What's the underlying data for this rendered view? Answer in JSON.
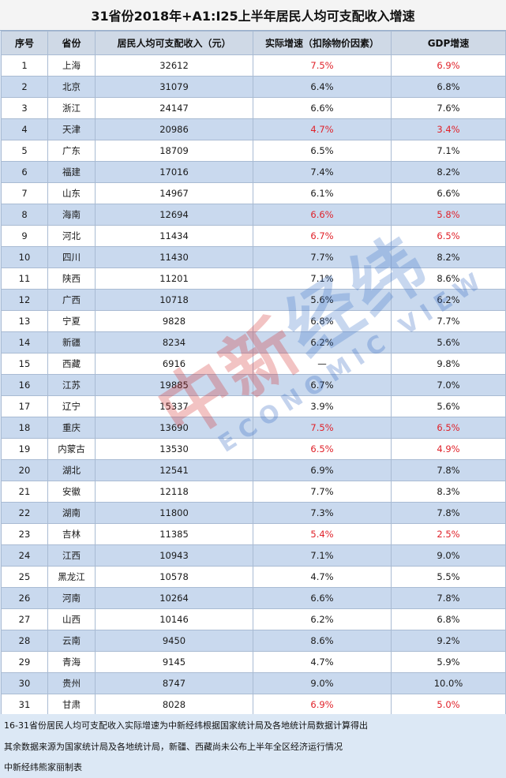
{
  "title": "31省份2018年+A1:I25上半年居民人均可支配收入增速",
  "headers": [
    "序号",
    "省份",
    "居民人均可支配收入（元）",
    "实际增速（扣除物价因素）",
    "GDP增速"
  ],
  "rows": [
    {
      "no": "1",
      "province": "上海",
      "income": "32612",
      "real_growth": "7.5%",
      "gdp_growth": "6.9%",
      "rg_red": true,
      "gdp_red": true
    },
    {
      "no": "2",
      "province": "北京",
      "income": "31079",
      "real_growth": "6.4%",
      "gdp_growth": "6.8%",
      "rg_red": false,
      "gdp_red": false
    },
    {
      "no": "3",
      "province": "浙江",
      "income": "24147",
      "real_growth": "6.6%",
      "gdp_growth": "7.6%",
      "rg_red": false,
      "gdp_red": false
    },
    {
      "no": "4",
      "province": "天津",
      "income": "20986",
      "real_growth": "4.7%",
      "gdp_growth": "3.4%",
      "rg_red": true,
      "gdp_red": true
    },
    {
      "no": "5",
      "province": "广东",
      "income": "18709",
      "real_growth": "6.5%",
      "gdp_growth": "7.1%",
      "rg_red": false,
      "gdp_red": false
    },
    {
      "no": "6",
      "province": "福建",
      "income": "17016",
      "real_growth": "7.4%",
      "gdp_growth": "8.2%",
      "rg_red": false,
      "gdp_red": false
    },
    {
      "no": "7",
      "province": "山东",
      "income": "14967",
      "real_growth": "6.1%",
      "gdp_growth": "6.6%",
      "rg_red": false,
      "gdp_red": false
    },
    {
      "no": "8",
      "province": "海南",
      "income": "12694",
      "real_growth": "6.6%",
      "gdp_growth": "5.8%",
      "rg_red": true,
      "gdp_red": true
    },
    {
      "no": "9",
      "province": "河北",
      "income": "11434",
      "real_growth": "6.7%",
      "gdp_growth": "6.5%",
      "rg_red": true,
      "gdp_red": true
    },
    {
      "no": "10",
      "province": "四川",
      "income": "11430",
      "real_growth": "7.7%",
      "gdp_growth": "8.2%",
      "rg_red": false,
      "gdp_red": false
    },
    {
      "no": "11",
      "province": "陕西",
      "income": "11201",
      "real_growth": "7.1%",
      "gdp_growth": "8.6%",
      "rg_red": false,
      "gdp_red": false
    },
    {
      "no": "12",
      "province": "广西",
      "income": "10718",
      "real_growth": "5.6%",
      "gdp_growth": "6.2%",
      "rg_red": false,
      "gdp_red": false
    },
    {
      "no": "13",
      "province": "宁夏",
      "income": "9828",
      "real_growth": "6.8%",
      "gdp_growth": "7.7%",
      "rg_red": false,
      "gdp_red": false
    },
    {
      "no": "14",
      "province": "新疆",
      "income": "8234",
      "real_growth": "6.2%",
      "gdp_growth": "5.6%",
      "rg_red": false,
      "gdp_red": false
    },
    {
      "no": "15",
      "province": "西藏",
      "income": "6916",
      "real_growth": "—",
      "gdp_growth": "9.8%",
      "rg_red": false,
      "gdp_red": false
    },
    {
      "no": "16",
      "province": "江苏",
      "income": "19885",
      "real_growth": "6.7%",
      "gdp_growth": "7.0%",
      "rg_red": false,
      "gdp_red": false
    },
    {
      "no": "17",
      "province": "辽宁",
      "income": "15337",
      "real_growth": "3.9%",
      "gdp_growth": "5.6%",
      "rg_red": false,
      "gdp_red": false
    },
    {
      "no": "18",
      "province": "重庆",
      "income": "13690",
      "real_growth": "7.5%",
      "gdp_growth": "6.5%",
      "rg_red": true,
      "gdp_red": true
    },
    {
      "no": "19",
      "province": "内蒙古",
      "income": "13530",
      "real_growth": "6.5%",
      "gdp_growth": "4.9%",
      "rg_red": true,
      "gdp_red": true
    },
    {
      "no": "20",
      "province": "湖北",
      "income": "12541",
      "real_growth": "6.9%",
      "gdp_growth": "7.8%",
      "rg_red": false,
      "gdp_red": false
    },
    {
      "no": "21",
      "province": "安徽",
      "income": "12118",
      "real_growth": "7.7%",
      "gdp_growth": "8.3%",
      "rg_red": false,
      "gdp_red": false
    },
    {
      "no": "22",
      "province": "湖南",
      "income": "11800",
      "real_growth": "7.3%",
      "gdp_growth": "7.8%",
      "rg_red": false,
      "gdp_red": false
    },
    {
      "no": "23",
      "province": "吉林",
      "income": "11385",
      "real_growth": "5.4%",
      "gdp_growth": "2.5%",
      "rg_red": true,
      "gdp_red": true
    },
    {
      "no": "24",
      "province": "江西",
      "income": "10943",
      "real_growth": "7.1%",
      "gdp_growth": "9.0%",
      "rg_red": false,
      "gdp_red": false
    },
    {
      "no": "25",
      "province": "黑龙江",
      "income": "10578",
      "real_growth": "4.7%",
      "gdp_growth": "5.5%",
      "rg_red": false,
      "gdp_red": false
    },
    {
      "no": "26",
      "province": "河南",
      "income": "10264",
      "real_growth": "6.6%",
      "gdp_growth": "7.8%",
      "rg_red": false,
      "gdp_red": false
    },
    {
      "no": "27",
      "province": "山西",
      "income": "10146",
      "real_growth": "6.2%",
      "gdp_growth": "6.8%",
      "rg_red": false,
      "gdp_red": false
    },
    {
      "no": "28",
      "province": "云南",
      "income": "9450",
      "real_growth": "8.6%",
      "gdp_growth": "9.2%",
      "rg_red": false,
      "gdp_red": false
    },
    {
      "no": "29",
      "province": "青海",
      "income": "9145",
      "real_growth": "4.7%",
      "gdp_growth": "5.9%",
      "rg_red": false,
      "gdp_red": false
    },
    {
      "no": "30",
      "province": "贵州",
      "income": "8747",
      "real_growth": "9.0%",
      "gdp_growth": "10.0%",
      "rg_red": false,
      "gdp_red": false
    },
    {
      "no": "31",
      "province": "甘肃",
      "income": "8028",
      "real_growth": "6.9%",
      "gdp_growth": "5.0%",
      "rg_red": true,
      "gdp_red": true
    }
  ],
  "notes": [
    "16-31省份居民人均可支配收入实际增速为中新经纬根据国家统计局及各地统计局数据计算得出",
    "其余数据来源为国家统计局及各地统计局，新疆、西藏尚未公布上半年全区经济运行情况",
    "中新经纬熊家丽制表"
  ],
  "watermark": {
    "cn_red": "中新",
    "cn_blue": "经纬",
    "en": "ECONOMIC VIEW"
  },
  "colors": {
    "highlight_red": "#e0222a",
    "row_alt": "#c9d9ee",
    "header_bg": "#cfd9e6"
  }
}
